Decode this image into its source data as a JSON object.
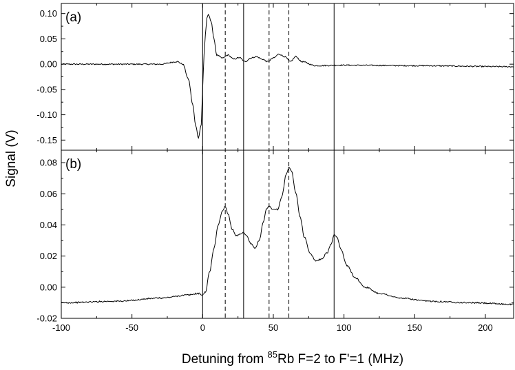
{
  "chart_data": {
    "type": "line",
    "xlabel_prefix": "Detuning from ",
    "xlabel_sup": "85",
    "xlabel_suffix": "Rb F=2 to F'=1 (MHz)",
    "ylabel": "Signal (V)",
    "xlim": [
      -100,
      220
    ],
    "x_ticks": [
      "-100",
      "-50",
      "0",
      "50",
      "100",
      "150",
      "200"
    ],
    "x_tick_values": [
      -100,
      -50,
      0,
      50,
      100,
      150,
      200
    ],
    "vlines_solid": [
      0,
      29,
      93
    ],
    "vlines_dashed": [
      16,
      47,
      61
    ],
    "panels": [
      {
        "label": "(a)",
        "ylim": [
          -0.17,
          0.12
        ],
        "y_tick_values": [
          -0.15,
          -0.1,
          -0.05,
          0.0,
          0.05,
          0.1
        ],
        "y_ticks": [
          "-0.15",
          "-0.10",
          "-0.05",
          "0.00",
          "0.05",
          "0.10"
        ],
        "x": [
          -100,
          -60,
          -30,
          -18,
          -14,
          -10,
          -7,
          -5,
          -3,
          -1,
          0,
          1,
          2,
          3,
          4,
          6,
          8,
          10,
          14,
          18,
          22,
          26,
          30,
          34,
          38,
          42,
          46,
          50,
          54,
          58,
          62,
          66,
          70,
          80,
          100,
          150,
          220
        ],
        "y": [
          0.0,
          0.0,
          0.0,
          0.005,
          0.0,
          -0.03,
          -0.08,
          -0.12,
          -0.145,
          -0.12,
          -0.05,
          0.02,
          0.06,
          0.09,
          0.098,
          0.085,
          0.05,
          0.018,
          0.012,
          0.018,
          0.01,
          0.013,
          0.005,
          0.012,
          0.015,
          0.01,
          0.005,
          0.012,
          0.02,
          0.015,
          0.005,
          0.015,
          0.005,
          -0.003,
          -0.002,
          -0.003,
          -0.005
        ]
      },
      {
        "label": "(b)",
        "ylim": [
          -0.02,
          0.088
        ],
        "y_tick_values": [
          -0.02,
          0.0,
          0.02,
          0.04,
          0.06,
          0.08
        ],
        "y_ticks": [
          "-0.02",
          "0.00",
          "0.02",
          "0.04",
          "0.06",
          "0.08"
        ],
        "x": [
          -100,
          -60,
          -30,
          -10,
          -3,
          0,
          2,
          5,
          8,
          11,
          14,
          16,
          18,
          21,
          24,
          27,
          29,
          31,
          34,
          37,
          40,
          43,
          45,
          47,
          50,
          53,
          56,
          59,
          61,
          63,
          66,
          69,
          72,
          76,
          80,
          84,
          88,
          91,
          93,
          95,
          98,
          102,
          108,
          115,
          125,
          140,
          160,
          190,
          220
        ],
        "y": [
          -0.01,
          -0.009,
          -0.007,
          -0.005,
          -0.004,
          -0.005,
          -0.003,
          0.01,
          0.025,
          0.04,
          0.049,
          0.052,
          0.047,
          0.037,
          0.033,
          0.034,
          0.035,
          0.033,
          0.028,
          0.025,
          0.03,
          0.042,
          0.05,
          0.052,
          0.05,
          0.05,
          0.058,
          0.072,
          0.077,
          0.074,
          0.06,
          0.045,
          0.032,
          0.022,
          0.017,
          0.018,
          0.022,
          0.028,
          0.034,
          0.032,
          0.024,
          0.014,
          0.006,
          0.0,
          -0.004,
          -0.007,
          -0.009,
          -0.01,
          -0.011
        ]
      }
    ]
  }
}
